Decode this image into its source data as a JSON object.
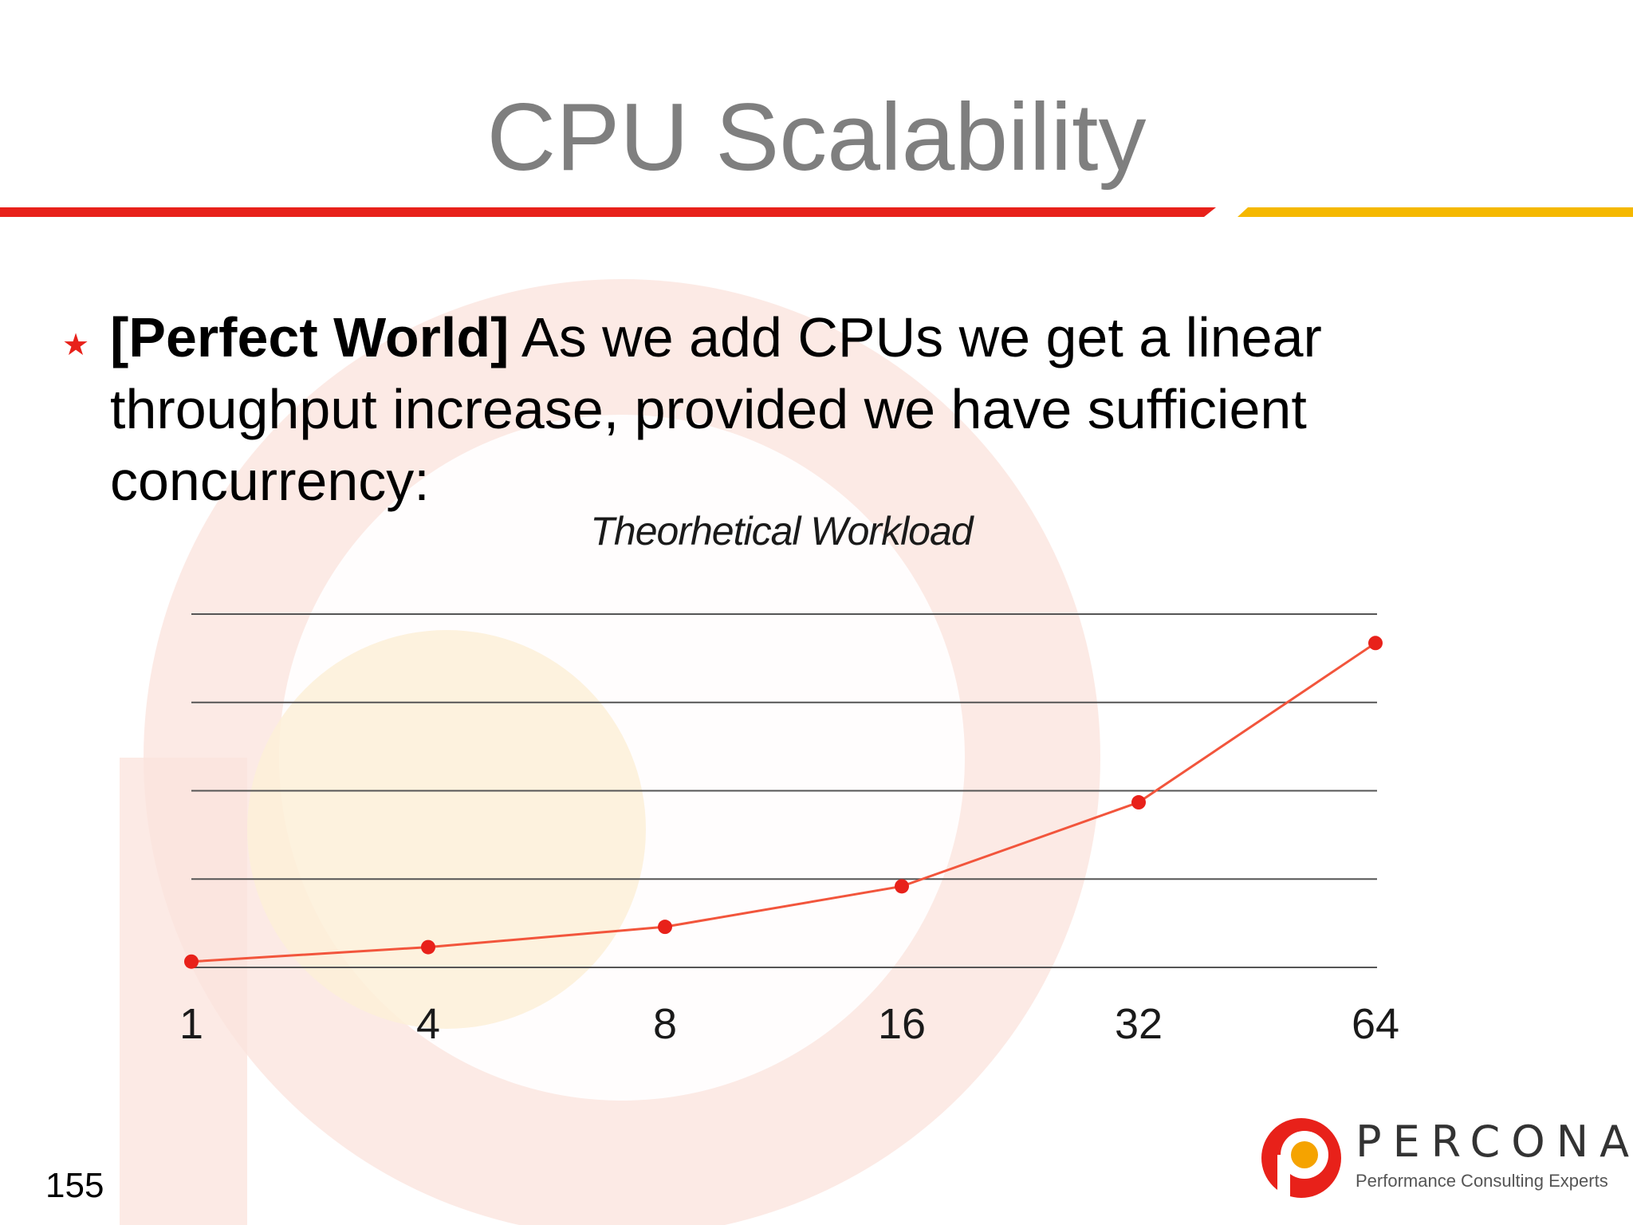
{
  "slide": {
    "title": "CPU Scalability",
    "bullet": {
      "bold": "[Perfect World]",
      "text": " As we add CPUs we get a linear throughput increase, provided we have sufficient concurrency:"
    },
    "page_number": "155"
  },
  "logo": {
    "word": "PERCONA",
    "tagline": "Performance Consulting Experts"
  },
  "colors": {
    "accent_red": "#e8211a",
    "accent_yellow": "#f5b800",
    "series": "#f2553c",
    "title_gray": "#7f7f7f"
  },
  "chart_data": {
    "type": "line",
    "title": "Theorhetical Workload",
    "categories": [
      "1",
      "4",
      "8",
      "16",
      "32",
      "64"
    ],
    "series": [
      {
        "values": [
          0.2,
          0.7,
          1.4,
          2.8,
          5.7,
          11.2
        ]
      }
    ],
    "ylim": [
      0,
      12.2
    ],
    "gridlines": [
      0,
      3,
      6,
      9,
      12
    ],
    "ytick_labels": false,
    "grid": true
  }
}
